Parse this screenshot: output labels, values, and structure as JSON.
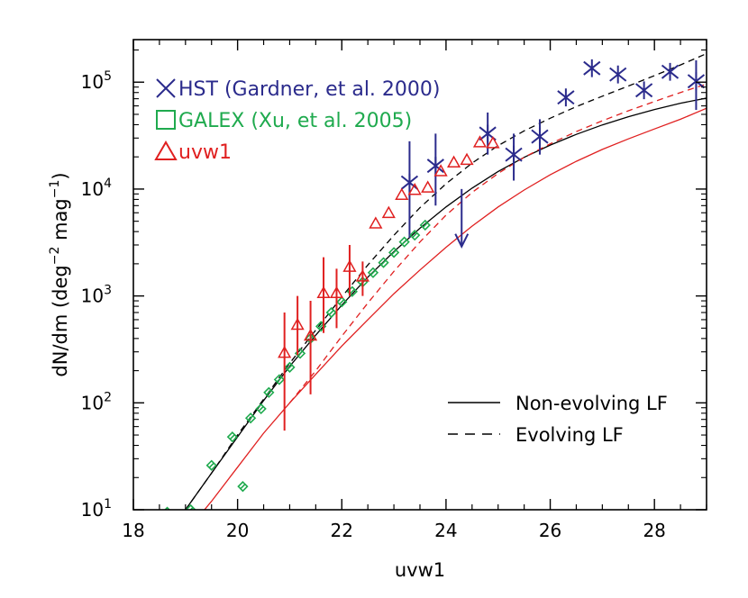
{
  "chart_data": {
    "type": "scatter",
    "xlabel": "uvw1",
    "ylabel_text": "dN/dm (deg",
    "ylabel_sup1": "−2",
    "ylabel_mid": " mag",
    "ylabel_sup2": "−1",
    "ylabel_end": ")",
    "xlim": [
      18,
      29
    ],
    "ylim": [
      10,
      250000
    ],
    "yscale": "log",
    "x_ticks": [
      {
        "value": 18,
        "label": "18"
      },
      {
        "value": 20,
        "label": "20"
      },
      {
        "value": 22,
        "label": "22"
      },
      {
        "value": 24,
        "label": "24"
      },
      {
        "value": 26,
        "label": "26"
      },
      {
        "value": 28,
        "label": "28"
      }
    ],
    "y_ticks": [
      {
        "value": 10,
        "base": "10",
        "exp": "1"
      },
      {
        "value": 100,
        "base": "10",
        "exp": "2"
      },
      {
        "value": 1000,
        "base": "10",
        "exp": "3"
      },
      {
        "value": 10000,
        "base": "10",
        "exp": "4"
      },
      {
        "value": 100000,
        "base": "10",
        "exp": "5"
      }
    ],
    "colors": {
      "hst": "#2b2b8c",
      "galex": "#1faa4e",
      "uvw1": "#e02020",
      "model_black": "#000000",
      "model_red": "#e02020"
    },
    "legend_points": [
      {
        "label": "HST (Gardner, et al. 2000)",
        "marker": "x",
        "color": "#2b2b8c"
      },
      {
        "label": "GALEX (Xu, et al. 2005)",
        "marker": "square",
        "color": "#1faa4e"
      },
      {
        "label": "uvw1",
        "marker": "triangle",
        "color": "#e02020"
      }
    ],
    "legend_lines": [
      {
        "label": "Non-evolving LF",
        "style": "solid"
      },
      {
        "label": "Evolving LF",
        "style": "dashed"
      }
    ],
    "series": [
      {
        "name": "HST (Gardner, et al. 2000)",
        "marker": "asterisk",
        "color": "#2b2b8c",
        "points": [
          {
            "x": 23.3,
            "y": 11500,
            "lo": 3500,
            "hi": 28000
          },
          {
            "x": 23.8,
            "y": 16500,
            "lo": 7000,
            "hi": 33000
          },
          {
            "x": 24.3,
            "upper_limit": 10000,
            "arrow_to": 2900
          },
          {
            "x": 24.8,
            "y": 33000,
            "lo": 21000,
            "hi": 52000
          },
          {
            "x": 25.3,
            "y": 21000,
            "lo": 12000,
            "hi": 33000
          },
          {
            "x": 25.8,
            "y": 31000,
            "lo": 21000,
            "hi": 45000
          },
          {
            "x": 26.3,
            "y": 72000
          },
          {
            "x": 26.8,
            "y": 135000
          },
          {
            "x": 27.3,
            "y": 118000
          },
          {
            "x": 27.8,
            "y": 84000
          },
          {
            "x": 28.3,
            "y": 125000
          },
          {
            "x": 28.8,
            "y": 102000,
            "lo": 55000,
            "hi": 160000
          }
        ]
      },
      {
        "name": "GALEX (Xu, et al. 2005)",
        "marker": "diamond",
        "color": "#1faa4e",
        "points": [
          {
            "x": 18.65,
            "y": 9.5
          },
          {
            "x": 19.1,
            "y": 10
          },
          {
            "x": 19.5,
            "y": 26
          },
          {
            "x": 19.9,
            "y": 48
          },
          {
            "x": 20.1,
            "y": 16.5
          },
          {
            "x": 20.25,
            "y": 72
          },
          {
            "x": 20.45,
            "y": 88
          },
          {
            "x": 20.6,
            "y": 125
          },
          {
            "x": 20.8,
            "y": 165
          },
          {
            "x": 21.0,
            "y": 215
          },
          {
            "x": 21.2,
            "y": 290
          },
          {
            "x": 21.4,
            "y": 400
          },
          {
            "x": 21.6,
            "y": 520
          },
          {
            "x": 21.8,
            "y": 700
          },
          {
            "x": 22.0,
            "y": 880
          },
          {
            "x": 22.2,
            "y": 1100
          },
          {
            "x": 22.4,
            "y": 1350
          },
          {
            "x": 22.6,
            "y": 1650
          },
          {
            "x": 22.8,
            "y": 2050
          },
          {
            "x": 23.0,
            "y": 2550
          },
          {
            "x": 23.2,
            "y": 3200
          },
          {
            "x": 23.4,
            "y": 3700
          },
          {
            "x": 23.6,
            "y": 4600
          }
        ]
      },
      {
        "name": "uvw1",
        "marker": "triangle",
        "color": "#e02020",
        "points": [
          {
            "x": 20.9,
            "y": 290,
            "lo": 55,
            "hi": 700
          },
          {
            "x": 21.15,
            "y": 530,
            "lo": 280,
            "hi": 1000
          },
          {
            "x": 21.4,
            "y": 420,
            "lo": 120,
            "hi": 900
          },
          {
            "x": 21.65,
            "y": 1050,
            "lo": 450,
            "hi": 2300
          },
          {
            "x": 21.9,
            "y": 1050,
            "lo": 500,
            "hi": 1800
          },
          {
            "x": 22.15,
            "y": 1850,
            "lo": 1000,
            "hi": 3000
          },
          {
            "x": 22.4,
            "y": 1500,
            "lo": 1000,
            "hi": 2100
          },
          {
            "x": 22.65,
            "y": 4700
          },
          {
            "x": 22.9,
            "y": 5900
          },
          {
            "x": 23.15,
            "y": 8700
          },
          {
            "x": 23.4,
            "y": 9700
          },
          {
            "x": 23.65,
            "y": 10200
          },
          {
            "x": 23.9,
            "y": 14500
          },
          {
            "x": 24.15,
            "y": 17500
          },
          {
            "x": 24.4,
            "y": 18500
          },
          {
            "x": 24.65,
            "y": 27000
          },
          {
            "x": 24.9,
            "y": 26500
          }
        ]
      },
      {
        "name": "Non-evolving LF",
        "line": "solid",
        "color": "#000000",
        "points": [
          [
            18.8,
            7
          ],
          [
            19.0,
            10
          ],
          [
            19.5,
            22
          ],
          [
            20.0,
            48
          ],
          [
            20.5,
            105
          ],
          [
            21.0,
            220
          ],
          [
            21.5,
            430
          ],
          [
            22.0,
            820
          ],
          [
            22.5,
            1500
          ],
          [
            23.0,
            2600
          ],
          [
            23.5,
            4300
          ],
          [
            24.0,
            6800
          ],
          [
            24.5,
            10200
          ],
          [
            25.0,
            14600
          ],
          [
            25.5,
            19800
          ],
          [
            26.0,
            25800
          ],
          [
            26.5,
            32500
          ],
          [
            27.0,
            39800
          ],
          [
            27.5,
            47500
          ],
          [
            28.0,
            55500
          ],
          [
            28.5,
            63500
          ],
          [
            29.0,
            71000
          ]
        ]
      },
      {
        "name": "Non-evolving LF (red)",
        "line": "solid",
        "color": "#e02020",
        "points": [
          [
            19.2,
            8
          ],
          [
            19.5,
            12
          ],
          [
            20.0,
            25
          ],
          [
            20.5,
            52
          ],
          [
            21.0,
            100
          ],
          [
            21.5,
            185
          ],
          [
            22.0,
            340
          ],
          [
            22.5,
            600
          ],
          [
            23.0,
            1050
          ],
          [
            23.5,
            1750
          ],
          [
            24.0,
            2850
          ],
          [
            24.5,
            4500
          ],
          [
            25.0,
            6800
          ],
          [
            25.5,
            9800
          ],
          [
            26.0,
            13600
          ],
          [
            26.5,
            18200
          ],
          [
            27.0,
            23500
          ],
          [
            27.5,
            29500
          ],
          [
            28.0,
            36500
          ],
          [
            28.5,
            45000
          ],
          [
            29.0,
            57000
          ]
        ]
      },
      {
        "name": "Evolving LF",
        "line": "dashed",
        "color": "#000000",
        "points": [
          [
            18.9,
            8
          ],
          [
            19.0,
            10
          ],
          [
            19.5,
            22
          ],
          [
            20.0,
            50
          ],
          [
            20.5,
            108
          ],
          [
            21.0,
            235
          ],
          [
            21.5,
            480
          ],
          [
            22.0,
            980
          ],
          [
            22.5,
            1950
          ],
          [
            23.0,
            3700
          ],
          [
            23.5,
            6700
          ],
          [
            24.0,
            11200
          ],
          [
            24.5,
            17500
          ],
          [
            25.0,
            25500
          ],
          [
            25.5,
            35000
          ],
          [
            26.0,
            46000
          ],
          [
            26.5,
            59000
          ],
          [
            27.0,
            74000
          ],
          [
            27.5,
            92000
          ],
          [
            28.0,
            115000
          ],
          [
            28.5,
            145000
          ],
          [
            29.0,
            185000
          ]
        ]
      },
      {
        "name": "Evolving LF (red)",
        "line": "dashed",
        "color": "#e02020",
        "points": [
          [
            21.0,
            100
          ],
          [
            21.5,
            200
          ],
          [
            22.0,
            420
          ],
          [
            22.5,
            860
          ],
          [
            23.0,
            1700
          ],
          [
            23.5,
            3200
          ],
          [
            24.0,
            5700
          ],
          [
            24.5,
            9300
          ],
          [
            25.0,
            14000
          ],
          [
            25.5,
            19800
          ],
          [
            26.0,
            26500
          ],
          [
            26.5,
            34500
          ],
          [
            27.0,
            43500
          ],
          [
            27.5,
            54000
          ],
          [
            28.0,
            66000
          ],
          [
            28.5,
            80000
          ],
          [
            29.0,
            96000
          ]
        ]
      }
    ]
  }
}
